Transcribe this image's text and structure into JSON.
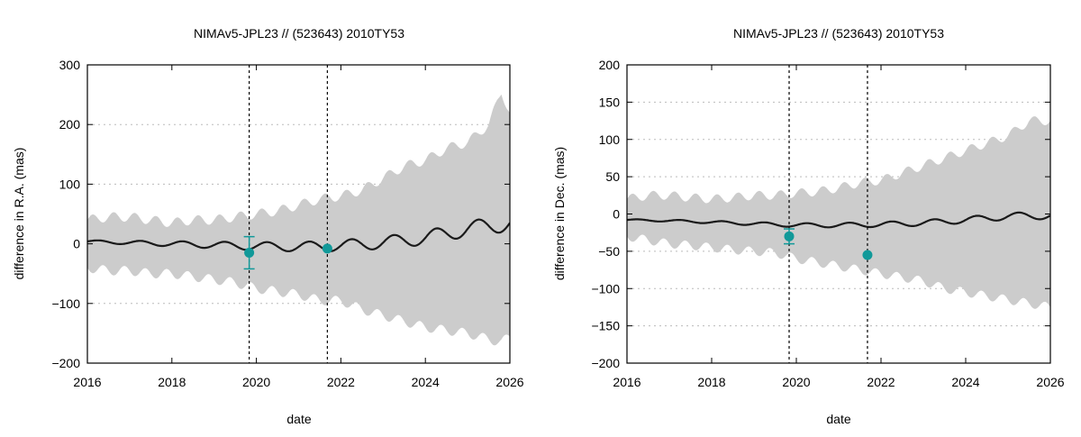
{
  "chart_data": [
    {
      "type": "line",
      "title": "NIMAv5-JPL23 // (523643) 2010TY53",
      "xlabel": "date",
      "ylabel": "difference in R.A. (mas)",
      "xlim": [
        2016,
        2026
      ],
      "ylim": [
        -200,
        300
      ],
      "xticks": [
        2016,
        2018,
        2020,
        2022,
        2024,
        2026
      ],
      "yticks": [
        -200,
        -100,
        0,
        100,
        200,
        300
      ],
      "grid": "horizontal dotted",
      "colors": {
        "band": "#cccccc",
        "line": "#1a1a1a",
        "point": "#119999",
        "vline": "#000000",
        "grid": "#bbbbbb"
      },
      "vlines": [
        2019.83,
        2021.68
      ],
      "points": [
        {
          "x": 2019.83,
          "y": -15,
          "err": 27
        },
        {
          "x": 2021.68,
          "y": -8,
          "err": 3
        }
      ],
      "band": {
        "x": [
          2016.0,
          2016.5,
          2017.0,
          2017.5,
          2018.0,
          2018.5,
          2019.0,
          2019.5,
          2020.0,
          2020.5,
          2021.0,
          2021.5,
          2022.0,
          2022.5,
          2023.0,
          2023.5,
          2024.0,
          2024.5,
          2025.0,
          2025.5,
          2025.8,
          2026.0
        ],
        "upper": [
          40,
          45,
          45,
          40,
          35,
          40,
          40,
          45,
          50,
          55,
          65,
          75,
          80,
          90,
          110,
          130,
          140,
          160,
          170,
          200,
          255,
          220
        ],
        "lower": [
          -40,
          -45,
          -45,
          -50,
          -50,
          -55,
          -60,
          -65,
          -75,
          -80,
          -85,
          -95,
          -95,
          -110,
          -120,
          -130,
          -140,
          -145,
          -150,
          -160,
          -165,
          -155
        ],
        "wiggle_amp": 8,
        "wiggle_period": 0.5
      },
      "line": {
        "x": [
          2016.0,
          2017.0,
          2018.0,
          2019.0,
          2020.0,
          2021.0,
          2022.0,
          2023.0,
          2024.0,
          2025.0,
          2026.0
        ],
        "y": [
          4,
          2,
          0,
          -2,
          -4,
          -5,
          -3,
          2,
          10,
          25,
          35
        ],
        "wiggle_amp_start": 2,
        "wiggle_amp_end": 14,
        "wiggle_period": 1.0
      }
    },
    {
      "type": "line",
      "title": "NIMAv5-JPL23 // (523643) 2010TY53",
      "xlabel": "date",
      "ylabel": "difference in Dec. (mas)",
      "xlim": [
        2016,
        2026
      ],
      "ylim": [
        -200,
        200
      ],
      "xticks": [
        2016,
        2018,
        2020,
        2022,
        2024,
        2026
      ],
      "yticks": [
        -200,
        -150,
        -100,
        -50,
        0,
        50,
        100,
        150,
        200
      ],
      "grid": "horizontal dotted",
      "colors": {
        "band": "#cccccc",
        "line": "#1a1a1a",
        "point": "#119999",
        "vline": "#000000",
        "grid": "#bbbbbb"
      },
      "vlines": [
        2019.83,
        2021.68
      ],
      "points": [
        {
          "x": 2019.83,
          "y": -30,
          "err": 10
        },
        {
          "x": 2021.68,
          "y": -55,
          "err": 2
        }
      ],
      "band": {
        "x": [
          2016.0,
          2016.5,
          2017.0,
          2017.5,
          2018.0,
          2018.5,
          2019.0,
          2019.5,
          2020.0,
          2020.5,
          2021.0,
          2021.5,
          2022.0,
          2022.5,
          2023.0,
          2023.5,
          2024.0,
          2024.5,
          2025.0,
          2025.5,
          2026.0
        ],
        "upper": [
          20,
          25,
          25,
          22,
          20,
          22,
          25,
          25,
          28,
          30,
          35,
          42,
          45,
          55,
          65,
          75,
          85,
          95,
          105,
          125,
          125
        ],
        "lower": [
          -30,
          -35,
          -40,
          -42,
          -45,
          -48,
          -50,
          -52,
          -60,
          -65,
          -70,
          -75,
          -80,
          -85,
          -90,
          -100,
          -105,
          -110,
          -115,
          -120,
          -125
        ],
        "wiggle_amp": 6,
        "wiggle_period": 0.5
      },
      "line": {
        "x": [
          2016.0,
          2017.0,
          2018.0,
          2019.0,
          2020.0,
          2021.0,
          2022.0,
          2023.0,
          2024.0,
          2025.0,
          2026.0
        ],
        "y": [
          -8,
          -9,
          -11,
          -13,
          -15,
          -15,
          -14,
          -12,
          -8,
          -3,
          -2
        ],
        "wiggle_amp_start": 1,
        "wiggle_amp_end": 5,
        "wiggle_period": 1.0
      }
    }
  ]
}
